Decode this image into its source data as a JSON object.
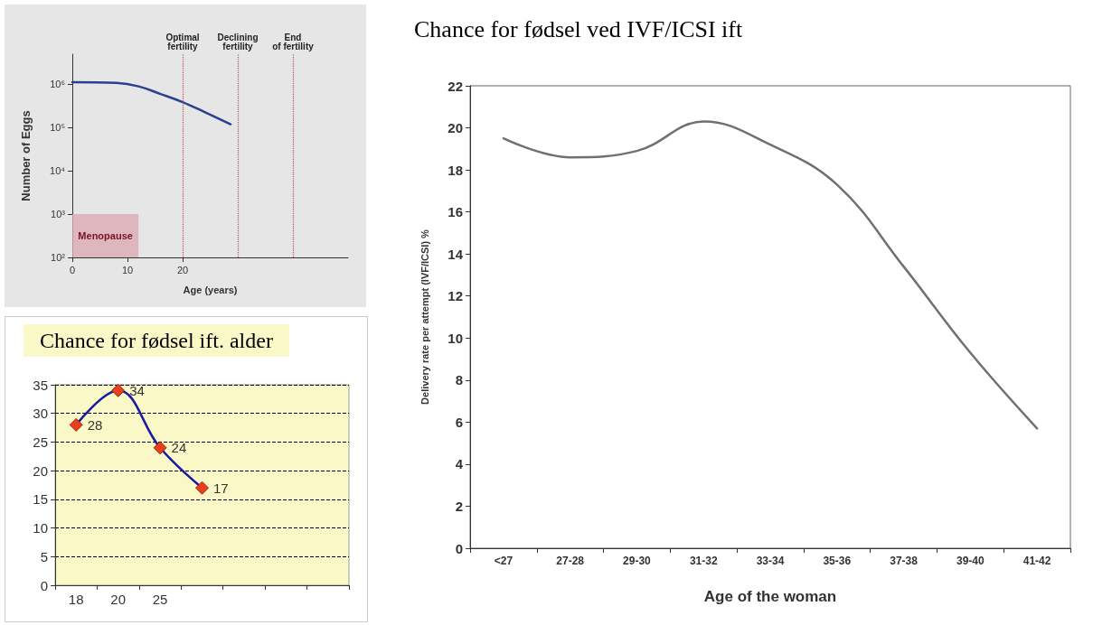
{
  "chart_data": [
    {
      "type": "line",
      "xlabel": "Age (years)",
      "ylabel": "Number of Eggs",
      "series": [
        {
          "color": "#2b3f8f",
          "x": [
            0,
            8,
            12,
            16,
            20,
            24,
            28.7
          ],
          "values": [
            1130000,
            1080000,
            900000,
            600000,
            390000,
            230000,
            120000
          ]
        }
      ],
      "xlim": [
        0,
        50
      ],
      "xticks": [
        0,
        10,
        20
      ],
      "ylim": [
        100,
        5000000
      ],
      "yticks": [
        {
          "value": 100,
          "label": "10²"
        },
        {
          "value": 1000,
          "label": "10³"
        },
        {
          "value": 10000,
          "label": "10⁴"
        },
        {
          "value": 100000,
          "label": "10⁵"
        },
        {
          "value": 1000000,
          "label": "10⁶"
        }
      ],
      "log": "y",
      "grid": false,
      "marker": "none",
      "ref_lines": [
        {
          "axis": "x",
          "value": 20,
          "label": "Optimal fertility",
          "color": "#c0505a",
          "line_style": "dotted"
        },
        {
          "axis": "x",
          "value": 30,
          "label": "Declining fertility",
          "color": "#c0505a",
          "line_style": "dotted"
        },
        {
          "axis": "x",
          "value": 40,
          "label": "End of fertility",
          "color": "#c0505a",
          "line_style": "dotted"
        }
      ],
      "bands": [
        {
          "axis": "y",
          "from": 100,
          "to": 1000,
          "label": "Menopause",
          "color": "#dcaab4"
        }
      ]
    },
    {
      "type": "line",
      "title": "Chance for fødsel ift. alder",
      "categories": [
        "18",
        "20",
        "25",
        null,
        null,
        null,
        null
      ],
      "series": [
        {
          "color": "#1a1aa0",
          "values": [
            28,
            34,
            24,
            17,
            null,
            null,
            null
          ]
        }
      ],
      "ylim": [
        0,
        35
      ],
      "yticks": [
        0,
        5,
        10,
        15,
        20,
        25,
        30,
        35
      ],
      "grid": "y",
      "marker": "diamond",
      "data_labels": true
    },
    {
      "type": "line",
      "title": "Chance for fødsel ved IVF/ICSI ift",
      "xlabel": "Age of the woman",
      "ylabel": "Delivery rate per attempt (IVF/ICSI) %",
      "categories": [
        "<27",
        "27-28",
        "29-30",
        "31-32",
        "33-34",
        "35-36",
        "37-38",
        "39-40",
        "41-42"
      ],
      "series": [
        {
          "color": "#707070",
          "values": [
            19.5,
            18.6,
            18.9,
            20.3,
            19.2,
            17.3,
            13.4,
            9.3,
            5.7
          ]
        }
      ],
      "ylim": [
        0,
        22
      ],
      "yticks": [
        0,
        2,
        4,
        6,
        8,
        10,
        12,
        14,
        16,
        18,
        20,
        22
      ],
      "grid": false,
      "marker": "none"
    }
  ]
}
